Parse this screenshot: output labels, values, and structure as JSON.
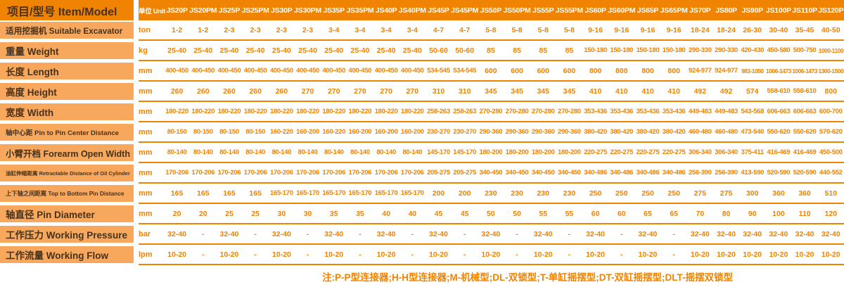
{
  "colors": {
    "accent_orange": "#F08300",
    "label_background": "#F8A85C",
    "label_text": "#44321E",
    "header_text": "#FFFFFF",
    "data_background": "#FFFFFF"
  },
  "header": {
    "item_model": "项目/型号 Item/Model",
    "unit": "单位 Unit"
  },
  "models": [
    "JS20P",
    "JS20PM",
    "JS25P",
    "JS25PM",
    "JS30P",
    "JS30PM",
    "JS35P",
    "JS35PM",
    "JS40P",
    "JS40PM",
    "JS45P",
    "JS45PM",
    "JS50P",
    "JS50PM",
    "JS55P",
    "JS55PM",
    "JS60P",
    "JS60PM",
    "JS65P",
    "JS65PM",
    "JS70P",
    "JS80P",
    "JS90P",
    "JS100P",
    "JS110P",
    "JS120P"
  ],
  "rows": [
    {
      "label_zh": "适用挖掘机",
      "label_en": "Suitable Excavator",
      "unit": "ton",
      "values": [
        "1-2",
        "1-2",
        "2-3",
        "2-3",
        "2-3",
        "2-3",
        "3-4",
        "3-4",
        "3-4",
        "3-4",
        "4-7",
        "4-7",
        "5-8",
        "5-8",
        "5-8",
        "5-8",
        "9-16",
        "9-16",
        "9-16",
        "9-16",
        "18-24",
        "18-24",
        "26-30",
        "30-40",
        "35-45",
        "40-50"
      ]
    },
    {
      "label_zh": "重量",
      "label_en": "Weight",
      "unit": "kg",
      "values": [
        "25-40",
        "25-40",
        "25-40",
        "25-40",
        "25-40",
        "25-40",
        "25-40",
        "25-40",
        "25-40",
        "25-40",
        "50-60",
        "50-60",
        "85",
        "85",
        "85",
        "85",
        "150-180",
        "150-180",
        "150-180",
        "150-180",
        "290-330",
        "290-330",
        "420-430",
        "450-580",
        "500-750",
        "1000-1100"
      ]
    },
    {
      "label_zh": "长度",
      "label_en": "Length",
      "unit": "mm",
      "values": [
        "400-450",
        "400-450",
        "400-450",
        "400-450",
        "400-450",
        "400-450",
        "400-450",
        "400-450",
        "400-450",
        "400-450",
        "534-545",
        "534-545",
        "600",
        "600",
        "600",
        "600",
        "800",
        "800",
        "800",
        "800",
        "924-977",
        "924-977",
        "983-1050",
        "1006-1473",
        "1006-1473",
        "1300-1500"
      ]
    },
    {
      "label_zh": "高度",
      "label_en": "Height",
      "unit": "mm",
      "values": [
        "260",
        "260",
        "260",
        "260",
        "260",
        "270",
        "270",
        "270",
        "270",
        "270",
        "310",
        "310",
        "345",
        "345",
        "345",
        "345",
        "410",
        "410",
        "410",
        "410",
        "492",
        "492",
        "574",
        "558-610",
        "558-610",
        "800"
      ]
    },
    {
      "label_zh": "宽度",
      "label_en": "Width",
      "unit": "mm",
      "values": [
        "180-220",
        "180-220",
        "180-220",
        "180-220",
        "180-220",
        "180-220",
        "180-220",
        "180-220",
        "180-220",
        "180-220",
        "258-263",
        "258-263",
        "270-280",
        "270-280",
        "270-280",
        "270-280",
        "353-436",
        "353-436",
        "353-436",
        "353-436",
        "449-483",
        "449-483",
        "543-568",
        "606-663",
        "606-663",
        "600-700"
      ]
    },
    {
      "label_zh": "轴中心距",
      "label_en": "Pin to Pin Center Distance",
      "unit": "mm",
      "values": [
        "80-150",
        "80-150",
        "80-150",
        "80-150",
        "160-220",
        "160-200",
        "160-220",
        "160-200",
        "160-200",
        "160-200",
        "230-270",
        "230-270",
        "290-360",
        "290-360",
        "290-360",
        "290-360",
        "380-420",
        "380-420",
        "380-420",
        "380-420",
        "460-480",
        "460-480",
        "473-540",
        "550-620",
        "550-620",
        "570-620"
      ]
    },
    {
      "label_zh": "小臂开档",
      "label_en": "Forearm Open Width",
      "unit": "mm",
      "values": [
        "80-140",
        "80-140",
        "80-140",
        "80-140",
        "80-140",
        "80-140",
        "80-140",
        "80-140",
        "80-140",
        "80-140",
        "145-170",
        "145-170",
        "180-200",
        "180-200",
        "180-200",
        "180-200",
        "220-275",
        "220-275",
        "220-275",
        "220-275",
        "306-340",
        "306-340",
        "375-411",
        "416-469",
        "416-469",
        "450-500"
      ]
    },
    {
      "label_zh": "油缸伸缩距离",
      "label_en": "Retractable Distance of Oil Cylinder",
      "unit": "mm",
      "values": [
        "170-206",
        "170-206",
        "170-206",
        "170-206",
        "170-206",
        "170-206",
        "170-206",
        "170-206",
        "170-206",
        "170-206",
        "205-275",
        "205-275",
        "340-450",
        "340-450",
        "340-450",
        "340-450",
        "340-486",
        "340-486",
        "340-486",
        "340-486",
        "256-390",
        "256-390",
        "413-590",
        "520-590",
        "520-590",
        "440-552"
      ]
    },
    {
      "label_zh": "上下轴之间距离",
      "label_en": "Top to Bottom Pin Distance",
      "unit": "mm",
      "values": [
        "165",
        "165",
        "165",
        "165",
        "165-170",
        "165-170",
        "165-170",
        "165-170",
        "165-170",
        "165-170",
        "200",
        "200",
        "230",
        "230",
        "230",
        "230",
        "250",
        "250",
        "250",
        "250",
        "275",
        "275",
        "300",
        "360",
        "360",
        "510"
      ]
    },
    {
      "label_zh": "轴直径",
      "label_en": "Pin Diameter",
      "unit": "mm",
      "values": [
        "20",
        "20",
        "25",
        "25",
        "30",
        "30",
        "35",
        "35",
        "40",
        "40",
        "45",
        "45",
        "50",
        "50",
        "55",
        "55",
        "60",
        "60",
        "65",
        "65",
        "70",
        "80",
        "90",
        "100",
        "110",
        "120"
      ]
    },
    {
      "label_zh": "工作压力",
      "label_en": "Working Pressure",
      "unit": "bar",
      "values": [
        "32-40",
        "-",
        "32-40",
        "-",
        "32-40",
        "-",
        "32-40",
        "-",
        "32-40",
        "-",
        "32-40",
        "-",
        "32-40",
        "-",
        "32-40",
        "-",
        "32-40",
        "-",
        "32-40",
        "-",
        "32-40",
        "32-40",
        "32-40",
        "32-40",
        "32-40",
        "32-40"
      ]
    },
    {
      "label_zh": "工作流量",
      "label_en": "Working Flow",
      "unit": "lpm",
      "values": [
        "10-20",
        "-",
        "10-20",
        "-",
        "10-20",
        "-",
        "10-20",
        "-",
        "10-20",
        "-",
        "10-20",
        "-",
        "10-20",
        "-",
        "10-20",
        "-",
        "10-20",
        "-",
        "10-20",
        "-",
        "10-20",
        "10-20",
        "10-20",
        "10-20",
        "10-20",
        "10-20"
      ]
    }
  ],
  "footer": {
    "note": "注:P-P型连接器;H-H型连接器;M-机械型;DL-双锁型;T-单缸摇摆型;DT-双缸摇摆型;DLT-摇摆双锁型"
  }
}
